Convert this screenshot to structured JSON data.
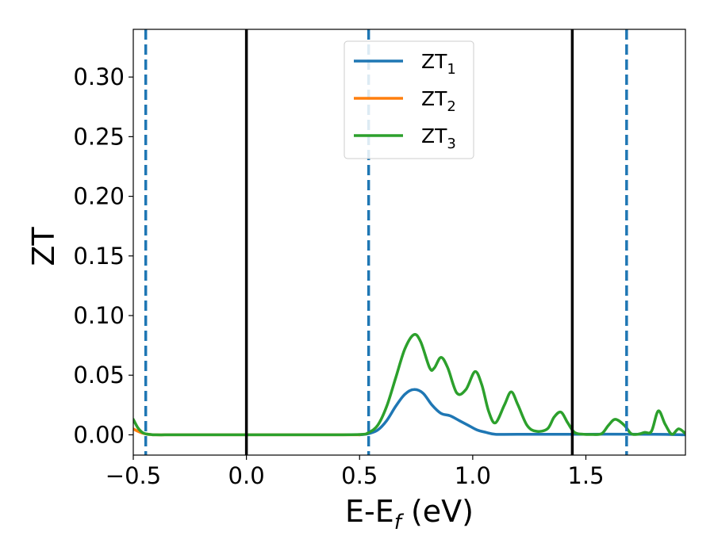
{
  "chart_data": {
    "type": "line",
    "xlabel": "E-E",
    "xlabel_sub": "f",
    "xlabel_suffix": " (eV)",
    "ylabel": "ZT",
    "xlim": [
      -0.5,
      1.94
    ],
    "ylim": [
      -0.017,
      0.34
    ],
    "xticks": [
      -0.5,
      0.0,
      0.5,
      1.0,
      1.5
    ],
    "xtick_labels": [
      "−0.5",
      "0.0",
      "0.5",
      "1.0",
      "1.5"
    ],
    "yticks": [
      0.0,
      0.05,
      0.1,
      0.15,
      0.2,
      0.25,
      0.3
    ],
    "ytick_labels": [
      "0.00",
      "0.05",
      "0.10",
      "0.15",
      "0.20",
      "0.25",
      "0.30"
    ],
    "grid": false,
    "legend": {
      "placement": "upper-center",
      "entries": [
        {
          "name": "ZT",
          "sub": "1",
          "color": "#1f77b4"
        },
        {
          "name": "ZT",
          "sub": "2",
          "color": "#ff7f0e"
        },
        {
          "name": "ZT",
          "sub": "3",
          "color": "#2ca02c"
        }
      ]
    },
    "vlines": [
      {
        "x": -0.445,
        "style": "dashed",
        "color": "#1f77b4"
      },
      {
        "x": 0.0,
        "style": "solid",
        "color": "#000000"
      },
      {
        "x": 0.54,
        "style": "dashed",
        "color": "#1f77b4"
      },
      {
        "x": 1.44,
        "style": "solid",
        "color": "#000000"
      },
      {
        "x": 1.68,
        "style": "dashed",
        "color": "#1f77b4"
      }
    ],
    "series": [
      {
        "name": "ZT1",
        "color": "#1f77b4",
        "x": [
          0.5,
          0.54,
          0.58,
          0.62,
          0.66,
          0.7,
          0.74,
          0.78,
          0.82,
          0.86,
          0.9,
          0.94,
          0.98,
          1.02,
          1.06,
          1.1,
          1.2,
          1.5,
          1.8,
          1.94
        ],
        "y": [
          0.0,
          0.001,
          0.004,
          0.012,
          0.024,
          0.034,
          0.038,
          0.035,
          0.025,
          0.018,
          0.016,
          0.012,
          0.008,
          0.004,
          0.002,
          0.0005,
          0.0005,
          0.0005,
          0.0005,
          0.0
        ]
      },
      {
        "name": "ZT2",
        "color": "#ff7f0e",
        "x": [
          -0.5,
          -0.48,
          -0.46,
          -0.44,
          -0.42,
          -0.4,
          -0.3,
          0.0,
          0.5
        ],
        "y": [
          0.005,
          0.003,
          0.0015,
          0.0006,
          0.0002,
          0.0,
          0.0,
          0.0,
          0.0
        ]
      },
      {
        "name": "ZT3",
        "color": "#2ca02c",
        "x": [
          -0.5,
          -0.48,
          -0.46,
          -0.44,
          -0.42,
          -0.4,
          -0.3,
          0.0,
          0.3,
          0.5,
          0.54,
          0.58,
          0.62,
          0.66,
          0.7,
          0.74,
          0.77,
          0.81,
          0.83,
          0.86,
          0.89,
          0.93,
          0.97,
          1.01,
          1.04,
          1.07,
          1.1,
          1.14,
          1.17,
          1.2,
          1.24,
          1.28,
          1.33,
          1.36,
          1.39,
          1.42,
          1.45,
          1.49,
          1.53,
          1.57,
          1.6,
          1.63,
          1.67,
          1.7,
          1.73,
          1.76,
          1.79,
          1.82,
          1.85,
          1.88,
          1.91,
          1.94
        ],
        "y": [
          0.013,
          0.006,
          0.002,
          0.0006,
          0.0002,
          0.0,
          0.0,
          0.0,
          0.0,
          0.0003,
          0.002,
          0.008,
          0.024,
          0.048,
          0.072,
          0.084,
          0.078,
          0.056,
          0.056,
          0.065,
          0.056,
          0.035,
          0.038,
          0.053,
          0.042,
          0.02,
          0.01,
          0.025,
          0.036,
          0.025,
          0.008,
          0.003,
          0.005,
          0.015,
          0.019,
          0.01,
          0.002,
          0.0005,
          0.0003,
          0.001,
          0.008,
          0.013,
          0.008,
          0.001,
          0.0005,
          0.002,
          0.003,
          0.02,
          0.009,
          0.0005,
          0.005,
          0.001
        ]
      }
    ]
  }
}
